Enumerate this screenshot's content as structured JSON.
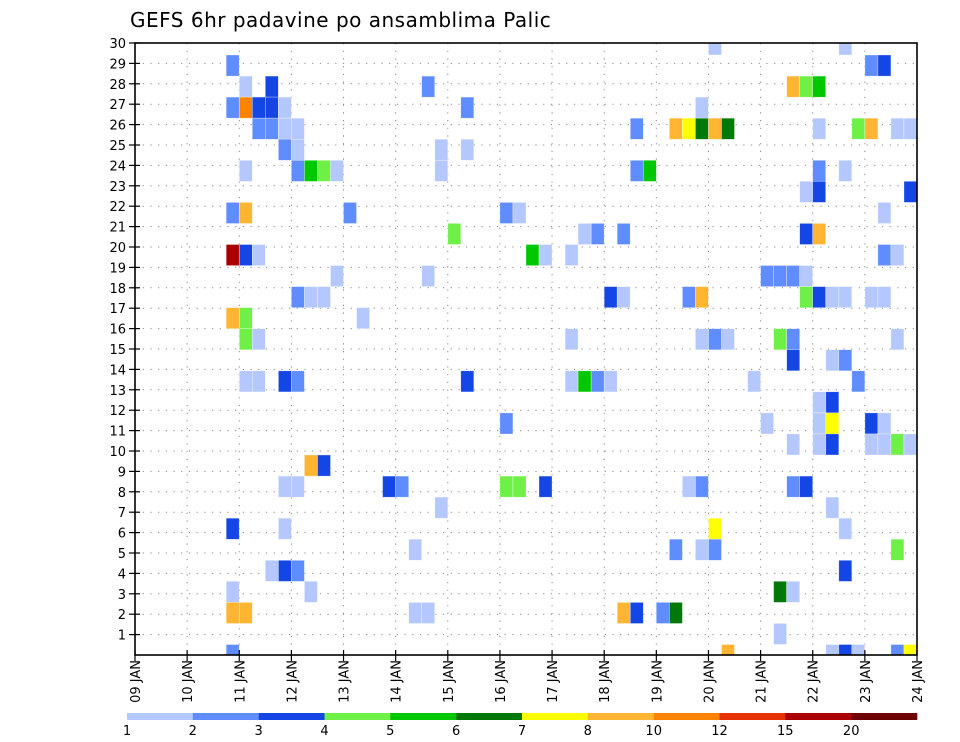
{
  "chart_data": {
    "type": "heatmap",
    "title": "GEFS 6hr padavine po ansamblima Palic",
    "xlabel": "",
    "ylabel": "",
    "x_ticks": [
      "09 JAN",
      "10 JAN",
      "11 JAN",
      "12 JAN",
      "13 JAN",
      "14 JAN",
      "15 JAN",
      "16 JAN",
      "17 JAN",
      "18 JAN",
      "19 JAN",
      "20 JAN",
      "21 JAN",
      "22 JAN",
      "23 JAN",
      "24 JAN"
    ],
    "y_ticks": [
      "1",
      "2",
      "3",
      "4",
      "5",
      "6",
      "7",
      "8",
      "9",
      "10",
      "11",
      "12",
      "13",
      "14",
      "15",
      "16",
      "17",
      "18",
      "19",
      "20",
      "21",
      "22",
      "23",
      "24",
      "25",
      "26",
      "27",
      "28",
      "29",
      "30"
    ],
    "ylim": [
      0,
      30
    ],
    "time_steps_per_day": 4,
    "member_rows": 30,
    "grid": true,
    "legend_placement": "bottom",
    "levels": [
      {
        "label": "1",
        "color": "#b4c8ff"
      },
      {
        "label": "2",
        "color": "#5f8cff"
      },
      {
        "label": "3",
        "color": "#1446e6"
      },
      {
        "label": "4",
        "color": "#6ef046"
      },
      {
        "label": "5",
        "color": "#00c800"
      },
      {
        "label": "6",
        "color": "#00780a"
      },
      {
        "label": "7",
        "color": "#ffff00"
      },
      {
        "label": "8",
        "color": "#ffb432"
      },
      {
        "label": "10",
        "color": "#ff8200"
      },
      {
        "label": "12",
        "color": "#e63200"
      },
      {
        "label": "15",
        "color": "#aa0000"
      },
      {
        "label": "20",
        "color": "#6e0000"
      }
    ],
    "cells_format": [
      "time_step_6h_from_09JAN",
      "member_row",
      "level_index"
    ],
    "cells": [
      [
        7,
        28,
        1
      ],
      [
        8,
        27,
        0
      ],
      [
        10,
        27,
        2
      ],
      [
        7,
        26,
        1
      ],
      [
        8,
        26,
        8
      ],
      [
        9,
        26,
        2
      ],
      [
        10,
        26,
        2
      ],
      [
        11,
        26,
        0
      ],
      [
        9,
        25,
        1
      ],
      [
        10,
        25,
        1
      ],
      [
        11,
        25,
        0
      ],
      [
        12,
        25,
        0
      ],
      [
        11,
        24,
        1
      ],
      [
        12,
        24,
        0
      ],
      [
        8,
        23,
        0
      ],
      [
        12,
        23,
        1
      ],
      [
        13,
        23,
        4
      ],
      [
        14,
        23,
        3
      ],
      [
        15,
        23,
        0
      ],
      [
        7,
        21,
        1
      ],
      [
        8,
        21,
        7
      ],
      [
        16,
        21,
        1
      ],
      [
        7,
        19,
        10
      ],
      [
        8,
        19,
        2
      ],
      [
        9,
        19,
        0
      ],
      [
        15,
        18,
        0
      ],
      [
        12,
        17,
        1
      ],
      [
        13,
        17,
        0
      ],
      [
        14,
        17,
        0
      ],
      [
        7,
        16,
        7
      ],
      [
        8,
        16,
        3
      ],
      [
        17,
        16,
        0
      ],
      [
        8,
        15,
        3
      ],
      [
        9,
        15,
        0
      ],
      [
        8,
        13,
        0
      ],
      [
        9,
        13,
        0
      ],
      [
        11,
        13,
        2
      ],
      [
        12,
        13,
        1
      ],
      [
        13,
        9,
        7
      ],
      [
        14,
        9,
        2
      ],
      [
        11,
        8,
        0
      ],
      [
        12,
        8,
        0
      ],
      [
        19,
        8,
        2
      ],
      [
        20,
        8,
        1
      ],
      [
        7,
        6,
        2
      ],
      [
        11,
        6,
        0
      ],
      [
        10,
        4,
        0
      ],
      [
        11,
        4,
        2
      ],
      [
        12,
        4,
        1
      ],
      [
        7,
        3,
        0
      ],
      [
        13,
        3,
        0
      ],
      [
        7,
        2,
        7
      ],
      [
        8,
        2,
        7
      ],
      [
        7,
        0,
        1
      ],
      [
        22,
        27,
        1
      ],
      [
        25,
        26,
        1
      ],
      [
        38,
        25,
        1
      ],
      [
        23,
        24,
        0
      ],
      [
        23,
        23,
        0
      ],
      [
        25,
        24,
        0
      ],
      [
        38,
        23,
        1
      ],
      [
        39,
        23,
        4
      ],
      [
        28,
        21,
        1
      ],
      [
        29,
        21,
        0
      ],
      [
        24,
        20,
        3
      ],
      [
        34,
        20,
        0
      ],
      [
        35,
        20,
        1
      ],
      [
        37,
        20,
        1
      ],
      [
        30,
        19,
        4
      ],
      [
        31,
        19,
        0
      ],
      [
        33,
        19,
        0
      ],
      [
        22,
        18,
        0
      ],
      [
        36,
        17,
        2
      ],
      [
        37,
        17,
        0
      ],
      [
        33,
        15,
        0
      ],
      [
        25,
        13,
        2
      ],
      [
        33,
        13,
        0
      ],
      [
        34,
        13,
        4
      ],
      [
        35,
        13,
        1
      ],
      [
        36,
        13,
        0
      ],
      [
        28,
        11,
        1
      ],
      [
        28,
        8,
        3
      ],
      [
        29,
        8,
        3
      ],
      [
        31,
        8,
        2
      ],
      [
        23,
        7,
        0
      ],
      [
        21,
        5,
        0
      ],
      [
        21,
        2,
        0
      ],
      [
        22,
        2,
        0
      ],
      [
        37,
        2,
        7
      ],
      [
        38,
        2,
        2
      ],
      [
        40,
        2,
        1
      ],
      [
        44,
        29,
        0
      ],
      [
        54,
        29,
        0
      ],
      [
        56,
        28,
        1
      ],
      [
        57,
        28,
        2
      ],
      [
        50,
        27,
        7
      ],
      [
        51,
        27,
        3
      ],
      [
        52,
        27,
        4
      ],
      [
        43,
        26,
        0
      ],
      [
        41,
        25,
        7
      ],
      [
        42,
        25,
        6
      ],
      [
        43,
        25,
        5
      ],
      [
        44,
        25,
        7
      ],
      [
        45,
        25,
        5
      ],
      [
        52,
        25,
        0
      ],
      [
        55,
        25,
        3
      ],
      [
        56,
        25,
        7
      ],
      [
        58,
        25,
        0
      ],
      [
        59,
        25,
        0
      ],
      [
        52,
        23,
        1
      ],
      [
        54,
        23,
        0
      ],
      [
        51,
        22,
        0
      ],
      [
        52,
        22,
        2
      ],
      [
        59,
        22,
        2
      ],
      [
        57,
        21,
        0
      ],
      [
        51,
        20,
        2
      ],
      [
        52,
        20,
        7
      ],
      [
        57,
        19,
        1
      ],
      [
        58,
        19,
        0
      ],
      [
        48,
        18,
        1
      ],
      [
        49,
        18,
        1
      ],
      [
        50,
        18,
        1
      ],
      [
        51,
        18,
        0
      ],
      [
        42,
        17,
        1
      ],
      [
        43,
        17,
        7
      ],
      [
        51,
        17,
        3
      ],
      [
        52,
        17,
        2
      ],
      [
        53,
        17,
        0
      ],
      [
        54,
        17,
        0
      ],
      [
        56,
        17,
        0
      ],
      [
        57,
        17,
        0
      ],
      [
        43,
        15,
        0
      ],
      [
        44,
        15,
        1
      ],
      [
        45,
        15,
        0
      ],
      [
        49,
        15,
        3
      ],
      [
        50,
        15,
        1
      ],
      [
        58,
        15,
        0
      ],
      [
        50,
        14,
        2
      ],
      [
        53,
        14,
        0
      ],
      [
        54,
        14,
        1
      ],
      [
        47,
        13,
        0
      ],
      [
        55,
        13,
        1
      ],
      [
        52,
        12,
        0
      ],
      [
        53,
        12,
        2
      ],
      [
        48,
        11,
        0
      ],
      [
        52,
        11,
        0
      ],
      [
        53,
        11,
        6
      ],
      [
        56,
        11,
        2
      ],
      [
        57,
        11,
        0
      ],
      [
        50,
        10,
        0
      ],
      [
        52,
        10,
        0
      ],
      [
        53,
        10,
        2
      ],
      [
        56,
        10,
        0
      ],
      [
        57,
        10,
        0
      ],
      [
        58,
        10,
        3
      ],
      [
        59,
        10,
        0
      ],
      [
        42,
        8,
        0
      ],
      [
        43,
        8,
        1
      ],
      [
        50,
        8,
        1
      ],
      [
        51,
        8,
        2
      ],
      [
        53,
        7,
        0
      ],
      [
        44,
        6,
        6
      ],
      [
        54,
        6,
        0
      ],
      [
        41,
        5,
        1
      ],
      [
        43,
        5,
        0
      ],
      [
        44,
        5,
        1
      ],
      [
        58,
        5,
        3
      ],
      [
        54,
        4,
        2
      ],
      [
        49,
        3,
        5
      ],
      [
        50,
        3,
        0
      ],
      [
        40,
        2,
        1
      ],
      [
        41,
        2,
        5
      ],
      [
        49,
        1,
        0
      ],
      [
        45,
        0,
        7
      ],
      [
        53,
        0,
        0
      ],
      [
        54,
        0,
        2
      ],
      [
        55,
        0,
        0
      ],
      [
        58,
        0,
        1
      ],
      [
        59,
        0,
        6
      ]
    ]
  }
}
